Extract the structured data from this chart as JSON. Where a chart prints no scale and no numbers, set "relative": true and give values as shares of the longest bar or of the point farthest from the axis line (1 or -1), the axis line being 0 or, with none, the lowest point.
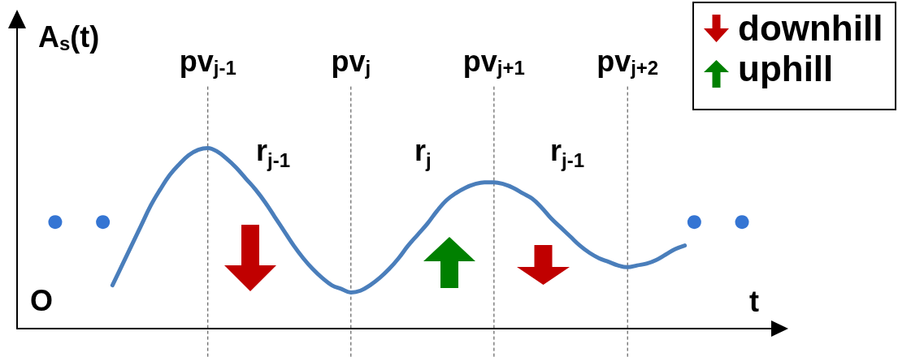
{
  "chart_data": {
    "type": "line",
    "relative": true,
    "xlabel": "t",
    "ylabel": "A$_{s}$(t)",
    "grid": false,
    "categories": [
      null,
      null,
      null,
      null,
      null,
      null,
      null,
      null,
      null,
      null,
      null,
      null,
      null,
      null,
      null,
      null,
      null,
      null,
      null,
      null,
      "pv$_{j-1}$",
      null,
      null,
      null,
      null,
      null,
      null,
      null,
      null,
      null,
      null,
      null,
      null,
      null,
      null,
      "pv$_{j}$",
      null,
      null,
      null,
      null,
      null,
      null,
      null,
      null,
      null,
      null,
      null,
      null,
      null,
      null,
      "pv$_{j+1}$",
      null,
      null,
      null,
      null,
      null,
      null,
      null,
      null,
      null,
      null,
      null,
      null,
      null,
      "pv$_{j+2}$",
      null,
      null,
      null,
      null,
      null,
      null,
      null,
      null,
      null,
      null,
      null,
      null,
      null,
      null,
      null,
      null
    ],
    "series": [
      {
        "color": "#4a7ebb",
        "marker": "none",
        "line_style": "solid",
        "values": [
          null,
          null,
          null,
          null,
          null,
          null,
          null,
          null,
          null,
          null,
          0.24,
          0.35,
          0.46,
          0.57,
          0.68,
          0.77,
          0.85,
          0.91,
          0.96,
          0.99,
          1.0,
          0.98,
          0.94,
          0.89,
          0.83,
          0.77,
          0.7,
          0.62,
          0.54,
          0.46,
          0.39,
          0.33,
          0.28,
          0.24,
          0.22,
          0.2,
          0.21,
          0.24,
          0.28,
          0.33,
          0.39,
          0.46,
          0.52,
          0.58,
          0.65,
          0.71,
          0.75,
          0.78,
          0.8,
          0.81,
          0.81,
          0.8,
          0.78,
          0.75,
          0.72,
          0.67,
          0.61,
          0.56,
          0.51,
          0.46,
          0.42,
          0.39,
          0.37,
          0.35,
          0.34,
          0.35,
          0.36,
          0.38,
          0.41,
          0.44,
          0.46,
          null,
          null,
          null,
          null,
          null,
          null,
          null,
          null,
          null,
          null
        ]
      },
      {
        "type": "scatter",
        "color": "#3575d3",
        "marker": "circle",
        "values": [
          null,
          null,
          null,
          null,
          0.59,
          null,
          null,
          null,
          null,
          0.59,
          null,
          null,
          null,
          null,
          null,
          null,
          null,
          null,
          null,
          null,
          null,
          null,
          null,
          null,
          null,
          null,
          null,
          null,
          null,
          null,
          null,
          null,
          null,
          null,
          null,
          null,
          null,
          null,
          null,
          null,
          null,
          null,
          null,
          null,
          null,
          null,
          null,
          null,
          null,
          null,
          null,
          null,
          null,
          null,
          null,
          null,
          null,
          null,
          null,
          null,
          null,
          null,
          null,
          null,
          null,
          null,
          null,
          null,
          null,
          null,
          null,
          0.59,
          null,
          null,
          null,
          null,
          0.59,
          null,
          null,
          null,
          null
        ]
      }
    ],
    "ref_lines": [
      {
        "axis": "x",
        "value": "pv$_{j-1}$",
        "color": "#404040",
        "line_style": "dashed"
      },
      {
        "axis": "x",
        "value": "pv$_{j}$",
        "color": "#404040",
        "line_style": "dashed"
      },
      {
        "axis": "x",
        "value": "pv$_{j+1}$",
        "color": "#404040",
        "line_style": "dashed"
      },
      {
        "axis": "x",
        "value": "pv$_{j+2}$",
        "color": "#404040",
        "line_style": "dashed"
      }
    ],
    "annotations": [
      "O",
      "r$_{j-1}$",
      "r$_{j}$",
      "r$_{j-1}$",
      "downhill",
      "uphill"
    ]
  }
}
